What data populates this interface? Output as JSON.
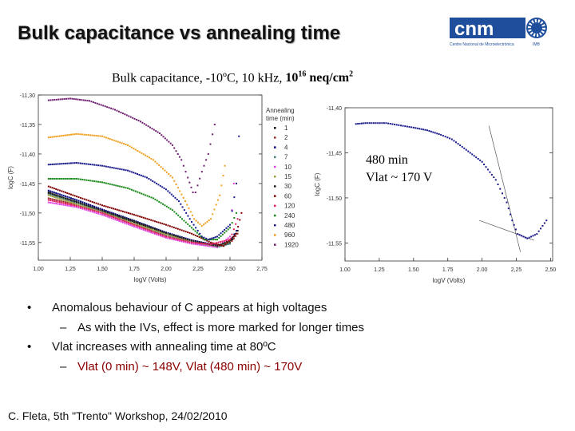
{
  "slide": {
    "title": "Bulk capacitance vs annealing time",
    "logo_text": "cnm",
    "logo_caption": "Centre Nacional de Microelectrònica",
    "logo_sub": "IMB",
    "subtitle_pre": "Bulk capacitance, -10ºC, 10 kHz, ",
    "subtitle_base": "10",
    "subtitle_exp": "16",
    "subtitle_unit": " neq/cm",
    "subtitle_unit_exp": "2",
    "bullets": [
      {
        "marker": "•",
        "text": "Anomalous behaviour of C appears at high voltages"
      },
      {
        "marker": "–",
        "text": "As with the IVs, effect is more marked for longer times"
      },
      {
        "marker": "•",
        "text": "Vlat increases with annealing time at 80ºC"
      },
      {
        "marker": "–",
        "text": "Vlat (0 min) ~ 148V, Vlat (480 min) ~ 170V"
      }
    ],
    "footer": "C. Fleta, 5th \"Trento\" Workshop, 24/02/2010",
    "colors": {
      "highlight_text": "#8b0000",
      "logo_blue": "#1f4e9c"
    }
  },
  "chart_data": [
    {
      "type": "scatter",
      "xlabel": "logV (Volts)",
      "ylabel": "logC (F)",
      "xlim": [
        1.0,
        2.75
      ],
      "ylim": [
        -11.58,
        -11.3
      ],
      "xticks": [
        "1,00",
        "1,25",
        "1,50",
        "1,75",
        "2,00",
        "2,25",
        "2,50",
        "2,75"
      ],
      "xtick_values": [
        1.0,
        1.25,
        1.5,
        1.75,
        2.0,
        2.25,
        2.5,
        2.75
      ],
      "yticks": [
        "-11,30",
        "-11,35",
        "-11,40",
        "-11,45",
        "-11,50",
        "-11,55"
      ],
      "ytick_values": [
        -11.3,
        -11.35,
        -11.4,
        -11.45,
        -11.5,
        -11.55
      ],
      "legend_title": [
        "Annealing",
        "time (min)"
      ],
      "legend_position": "right",
      "series": [
        {
          "name": "1",
          "color": "#000000",
          "points": [
            [
              1.08,
              -11.465
            ],
            [
              1.3,
              -11.482
            ],
            [
              1.5,
              -11.497
            ],
            [
              1.75,
              -11.515
            ],
            [
              2.0,
              -11.535
            ],
            [
              2.2,
              -11.548
            ],
            [
              2.4,
              -11.555
            ],
            [
              2.5,
              -11.55
            ],
            [
              2.56,
              -11.53
            ]
          ]
        },
        {
          "name": "2",
          "color": "#a03030",
          "points": [
            [
              1.08,
              -11.475
            ],
            [
              1.3,
              -11.486
            ],
            [
              1.5,
              -11.5
            ],
            [
              1.75,
              -11.52
            ],
            [
              2.0,
              -11.538
            ],
            [
              2.2,
              -11.55
            ],
            [
              2.4,
              -11.557
            ],
            [
              2.5,
              -11.552
            ],
            [
              2.56,
              -11.535
            ]
          ]
        },
        {
          "name": "4",
          "color": "#000080",
          "points": [
            [
              1.08,
              -11.462
            ],
            [
              1.3,
              -11.478
            ],
            [
              1.5,
              -11.494
            ],
            [
              1.75,
              -11.513
            ],
            [
              2.0,
              -11.533
            ],
            [
              2.2,
              -11.546
            ],
            [
              2.4,
              -11.555
            ],
            [
              2.5,
              -11.548
            ],
            [
              2.55,
              -11.53
            ]
          ]
        },
        {
          "name": "7",
          "color": "#408080",
          "points": [
            [
              1.08,
              -11.468
            ],
            [
              1.3,
              -11.484
            ],
            [
              1.5,
              -11.498
            ],
            [
              1.75,
              -11.518
            ],
            [
              2.0,
              -11.537
            ],
            [
              2.2,
              -11.55
            ],
            [
              2.4,
              -11.558
            ],
            [
              2.5,
              -11.552
            ]
          ]
        },
        {
          "name": "10",
          "color": "#e040e0",
          "points": [
            [
              1.08,
              -11.482
            ],
            [
              1.3,
              -11.49
            ],
            [
              1.5,
              -11.503
            ],
            [
              1.75,
              -11.523
            ],
            [
              2.0,
              -11.542
            ],
            [
              2.2,
              -11.552
            ],
            [
              2.4,
              -11.558
            ],
            [
              2.5,
              -11.54
            ],
            [
              2.53,
              -11.45
            ]
          ]
        },
        {
          "name": "15",
          "color": "#a0a040",
          "points": [
            [
              1.08,
              -11.47
            ],
            [
              1.3,
              -11.485
            ],
            [
              1.5,
              -11.499
            ],
            [
              1.75,
              -11.518
            ],
            [
              2.0,
              -11.536
            ],
            [
              2.2,
              -11.549
            ],
            [
              2.4,
              -11.556
            ],
            [
              2.5,
              -11.548
            ]
          ]
        },
        {
          "name": "30",
          "color": "#202020",
          "points": [
            [
              1.08,
              -11.466
            ],
            [
              1.3,
              -11.481
            ],
            [
              1.5,
              -11.496
            ],
            [
              1.75,
              -11.514
            ],
            [
              2.0,
              -11.534
            ],
            [
              2.2,
              -11.547
            ],
            [
              2.4,
              -11.556
            ],
            [
              2.52,
              -11.545
            ]
          ]
        },
        {
          "name": "60",
          "color": "#800000",
          "points": [
            [
              1.08,
              -11.455
            ],
            [
              1.3,
              -11.472
            ],
            [
              1.5,
              -11.487
            ],
            [
              1.75,
              -11.503
            ],
            [
              2.0,
              -11.52
            ],
            [
              2.2,
              -11.535
            ],
            [
              2.35,
              -11.55
            ],
            [
              2.45,
              -11.556
            ],
            [
              2.55,
              -11.535
            ],
            [
              2.59,
              -11.5
            ]
          ]
        },
        {
          "name": "120",
          "color": "#e02060",
          "points": [
            [
              1.08,
              -11.478
            ],
            [
              1.3,
              -11.488
            ],
            [
              1.5,
              -11.5
            ],
            [
              1.75,
              -11.52
            ],
            [
              2.0,
              -11.54
            ],
            [
              2.2,
              -11.55
            ],
            [
              2.35,
              -11.553
            ],
            [
              2.5,
              -11.545
            ],
            [
              2.56,
              -11.51
            ]
          ]
        },
        {
          "name": "240",
          "color": "#1a8a1a",
          "points": [
            [
              1.08,
              -11.442
            ],
            [
              1.3,
              -11.442
            ],
            [
              1.5,
              -11.448
            ],
            [
              1.7,
              -11.458
            ],
            [
              1.9,
              -11.475
            ],
            [
              2.05,
              -11.495
            ],
            [
              2.2,
              -11.525
            ],
            [
              2.3,
              -11.545
            ],
            [
              2.4,
              -11.545
            ],
            [
              2.5,
              -11.525
            ],
            [
              2.55,
              -11.5
            ]
          ]
        },
        {
          "name": "480",
          "color": "#1a1a8c",
          "points": [
            [
              1.08,
              -11.418
            ],
            [
              1.3,
              -11.415
            ],
            [
              1.5,
              -11.42
            ],
            [
              1.7,
              -11.428
            ],
            [
              1.85,
              -11.44
            ],
            [
              2.0,
              -11.46
            ],
            [
              2.1,
              -11.48
            ],
            [
              2.2,
              -11.515
            ],
            [
              2.28,
              -11.54
            ],
            [
              2.33,
              -11.545
            ],
            [
              2.4,
              -11.54
            ],
            [
              2.5,
              -11.52
            ],
            [
              2.55,
              -11.45
            ],
            [
              2.57,
              -11.37
            ]
          ]
        },
        {
          "name": "960",
          "color": "#f0a020",
          "points": [
            [
              1.08,
              -11.372
            ],
            [
              1.3,
              -11.366
            ],
            [
              1.5,
              -11.37
            ],
            [
              1.7,
              -11.385
            ],
            [
              1.9,
              -11.41
            ],
            [
              2.05,
              -11.44
            ],
            [
              2.15,
              -11.48
            ],
            [
              2.22,
              -11.51
            ],
            [
              2.28,
              -11.522
            ],
            [
              2.35,
              -11.51
            ],
            [
              2.42,
              -11.47
            ],
            [
              2.46,
              -11.42
            ]
          ]
        },
        {
          "name": "1920",
          "color": "#702070",
          "points": [
            [
              1.08,
              -11.309
            ],
            [
              1.25,
              -11.306
            ],
            [
              1.4,
              -11.31
            ],
            [
              1.6,
              -11.325
            ],
            [
              1.8,
              -11.345
            ],
            [
              1.95,
              -11.365
            ],
            [
              2.05,
              -11.385
            ],
            [
              2.12,
              -11.41
            ],
            [
              2.17,
              -11.44
            ],
            [
              2.21,
              -11.465
            ],
            [
              2.23,
              -11.465
            ],
            [
              2.28,
              -11.43
            ],
            [
              2.33,
              -11.4
            ],
            [
              2.38,
              -11.35
            ]
          ]
        }
      ]
    },
    {
      "type": "scatter",
      "xlabel": "logV (Volts)",
      "ylabel": "logC (F)",
      "xlim": [
        1.0,
        2.515
      ],
      "ylim": [
        -11.57,
        -11.4
      ],
      "xticks": [
        "1.00",
        "1.25",
        "1.50",
        "1.75",
        "2.00",
        "2,25",
        "2,50"
      ],
      "xtick_values": [
        1.0,
        1.25,
        1.5,
        1.75,
        2.0,
        2.25,
        2.5
      ],
      "yticks": [
        "-11,40",
        "-11,45",
        "-11,50",
        "-11,55"
      ],
      "ytick_values": [
        -11.4,
        -11.45,
        -11.5,
        -11.55
      ],
      "annotation": [
        "480 min",
        "Vlat ~ 170 V"
      ],
      "series": [
        {
          "color": "#1a1a8c",
          "points": [
            [
              1.08,
              -11.418
            ],
            [
              1.15,
              -11.417
            ],
            [
              1.3,
              -11.417
            ],
            [
              1.5,
              -11.422
            ],
            [
              1.6,
              -11.425
            ],
            [
              1.7,
              -11.43
            ],
            [
              1.78,
              -11.435
            ],
            [
              1.87,
              -11.445
            ],
            [
              2.0,
              -11.46
            ],
            [
              2.1,
              -11.48
            ],
            [
              2.18,
              -11.505
            ],
            [
              2.22,
              -11.525
            ],
            [
              2.26,
              -11.54
            ],
            [
              2.33,
              -11.545
            ],
            [
              2.4,
              -11.54
            ],
            [
              2.47,
              -11.525
            ]
          ]
        }
      ],
      "fit_lines": [
        {
          "points": [
            [
              2.05,
              -11.42
            ],
            [
              2.28,
              -11.56
            ]
          ]
        },
        {
          "points": [
            [
              1.98,
              -11.525
            ],
            [
              2.38,
              -11.547
            ]
          ]
        }
      ]
    }
  ]
}
